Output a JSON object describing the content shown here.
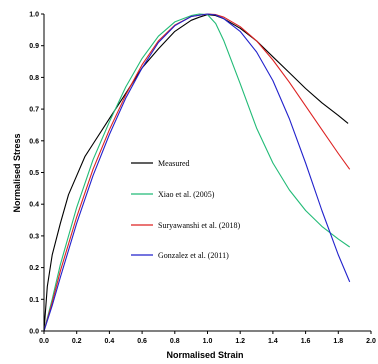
{
  "chart_data": {
    "type": "line",
    "xlabel": "Normalised Strain",
    "ylabel": "Normalised Stress",
    "xlim": [
      0,
      2.0
    ],
    "ylim": [
      0,
      1.0
    ],
    "x_ticks": [
      "0.0",
      "0.2",
      "0.4",
      "0.6",
      "0.8",
      "1.0",
      "1.2",
      "1.4",
      "1.6",
      "1.8",
      "2.0"
    ],
    "y_ticks": [
      "0.0",
      "0.1",
      "0.2",
      "0.3",
      "0.4",
      "0.5",
      "0.6",
      "0.7",
      "0.8",
      "0.9",
      "1.0"
    ],
    "grid": false,
    "legend_position": "center-left",
    "series": [
      {
        "name": "Measured",
        "color": "#000000",
        "x": [
          0,
          0.02,
          0.05,
          0.1,
          0.15,
          0.2,
          0.25,
          0.3,
          0.4,
          0.5,
          0.6,
          0.7,
          0.8,
          0.9,
          0.95,
          1.0,
          1.05,
          1.1,
          1.2,
          1.3,
          1.4,
          1.5,
          1.6,
          1.7,
          1.8,
          1.86
        ],
        "y": [
          0,
          0.14,
          0.24,
          0.34,
          0.43,
          0.49,
          0.55,
          0.59,
          0.67,
          0.75,
          0.83,
          0.89,
          0.945,
          0.98,
          0.99,
          0.998,
          0.995,
          0.985,
          0.955,
          0.915,
          0.865,
          0.815,
          0.765,
          0.72,
          0.68,
          0.655
        ]
      },
      {
        "name": "Xiao et al. (2005)",
        "color": "#22bb77",
        "x": [
          0,
          0.05,
          0.1,
          0.2,
          0.3,
          0.4,
          0.5,
          0.6,
          0.7,
          0.8,
          0.9,
          0.95,
          1.0,
          1.05,
          1.1,
          1.2,
          1.3,
          1.4,
          1.5,
          1.6,
          1.7,
          1.8,
          1.87
        ],
        "y": [
          0,
          0.1,
          0.21,
          0.39,
          0.54,
          0.66,
          0.77,
          0.86,
          0.93,
          0.975,
          0.995,
          1.0,
          0.998,
          0.97,
          0.915,
          0.78,
          0.64,
          0.53,
          0.445,
          0.38,
          0.33,
          0.29,
          0.265
        ]
      },
      {
        "name": "Suryawanshi et al. (2018)",
        "color": "#dd2222",
        "x": [
          0,
          0.05,
          0.1,
          0.2,
          0.3,
          0.4,
          0.5,
          0.6,
          0.7,
          0.8,
          0.9,
          1.0,
          1.05,
          1.1,
          1.2,
          1.3,
          1.4,
          1.5,
          1.6,
          1.7,
          1.8,
          1.87
        ],
        "y": [
          0,
          0.09,
          0.19,
          0.36,
          0.51,
          0.635,
          0.745,
          0.84,
          0.915,
          0.965,
          0.992,
          1.0,
          0.998,
          0.99,
          0.96,
          0.915,
          0.855,
          0.785,
          0.71,
          0.635,
          0.56,
          0.51
        ]
      },
      {
        "name": "Gonzalez et al. (2011)",
        "color": "#2222cc",
        "x": [
          0,
          0.05,
          0.1,
          0.2,
          0.3,
          0.4,
          0.5,
          0.6,
          0.7,
          0.8,
          0.9,
          1.0,
          1.05,
          1.1,
          1.2,
          1.3,
          1.4,
          1.5,
          1.6,
          1.7,
          1.8,
          1.87
        ],
        "y": [
          0,
          0.08,
          0.17,
          0.34,
          0.49,
          0.62,
          0.735,
          0.83,
          0.91,
          0.963,
          0.992,
          1.0,
          0.997,
          0.985,
          0.945,
          0.88,
          0.79,
          0.67,
          0.53,
          0.38,
          0.24,
          0.155
        ]
      }
    ]
  }
}
